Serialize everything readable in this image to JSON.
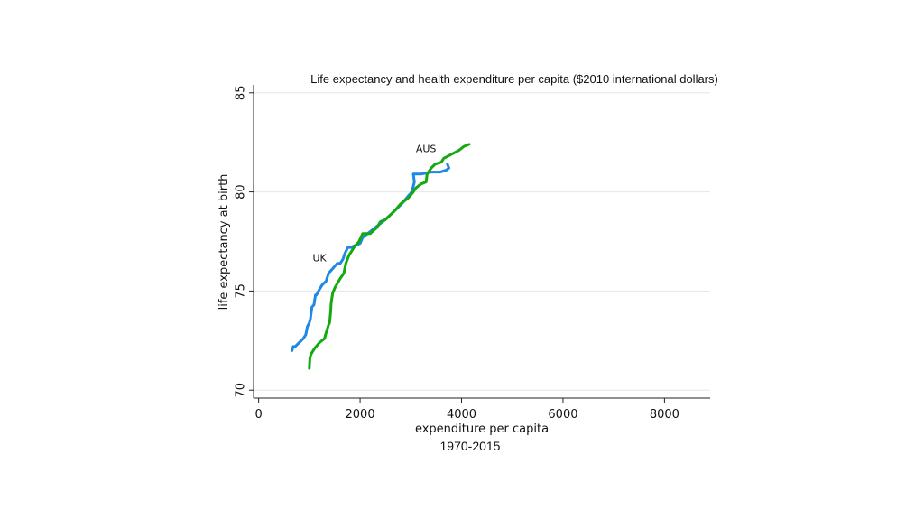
{
  "chart_data": {
    "type": "line",
    "title": "Life expectancy and health expenditure per capita ($2010 international dollars)",
    "xlabel": "expenditure per capita",
    "ylabel": "life expectancy at birth",
    "caption": "1970-2015",
    "xlim": [
      -100,
      8900
    ],
    "ylim": [
      69.6,
      85.4
    ],
    "xticks": [
      0,
      2000,
      4000,
      6000,
      8000
    ],
    "yticks": [
      70,
      75,
      80,
      85
    ],
    "grid": true,
    "legend": "none",
    "series": [
      {
        "name": "UK",
        "color": "#1f88e5",
        "label_at": [
          1200,
          76.5
        ],
        "points": [
          [
            660,
            72.0
          ],
          [
            680,
            72.2
          ],
          [
            720,
            72.2
          ],
          [
            800,
            72.4
          ],
          [
            880,
            72.6
          ],
          [
            930,
            72.8
          ],
          [
            960,
            73.2
          ],
          [
            1000,
            73.4
          ],
          [
            1020,
            73.6
          ],
          [
            1050,
            74.2
          ],
          [
            1090,
            74.3
          ],
          [
            1120,
            74.8
          ],
          [
            1140,
            74.8
          ],
          [
            1180,
            75.0
          ],
          [
            1250,
            75.3
          ],
          [
            1330,
            75.5
          ],
          [
            1380,
            75.9
          ],
          [
            1450,
            76.1
          ],
          [
            1550,
            76.4
          ],
          [
            1610,
            76.4
          ],
          [
            1660,
            76.6
          ],
          [
            1700,
            76.9
          ],
          [
            1760,
            77.2
          ],
          [
            1820,
            77.2
          ],
          [
            1900,
            77.3
          ],
          [
            2000,
            77.4
          ],
          [
            2050,
            77.7
          ],
          [
            2150,
            77.9
          ],
          [
            2300,
            78.2
          ],
          [
            2450,
            78.5
          ],
          [
            2620,
            78.9
          ],
          [
            2820,
            79.4
          ],
          [
            2950,
            79.8
          ],
          [
            3020,
            80.0
          ],
          [
            3050,
            80.3
          ],
          [
            3070,
            80.5
          ],
          [
            3050,
            80.9
          ],
          [
            3200,
            80.9
          ],
          [
            3400,
            81.0
          ],
          [
            3580,
            81.0
          ],
          [
            3700,
            81.1
          ],
          [
            3750,
            81.2
          ],
          [
            3720,
            81.4
          ]
        ]
      },
      {
        "name": "AUS",
        "color": "#14a90e",
        "label_at": [
          3300,
          82.0
        ],
        "points": [
          [
            1000,
            71.1
          ],
          [
            1010,
            71.6
          ],
          [
            1030,
            71.8
          ],
          [
            1100,
            72.1
          ],
          [
            1200,
            72.4
          ],
          [
            1300,
            72.6
          ],
          [
            1320,
            72.8
          ],
          [
            1380,
            73.3
          ],
          [
            1400,
            73.4
          ],
          [
            1420,
            74.0
          ],
          [
            1430,
            74.4
          ],
          [
            1460,
            74.9
          ],
          [
            1510,
            75.2
          ],
          [
            1600,
            75.6
          ],
          [
            1680,
            75.9
          ],
          [
            1720,
            76.4
          ],
          [
            1780,
            76.8
          ],
          [
            1880,
            77.2
          ],
          [
            1980,
            77.5
          ],
          [
            2050,
            77.9
          ],
          [
            2200,
            77.9
          ],
          [
            2330,
            78.2
          ],
          [
            2400,
            78.5
          ],
          [
            2500,
            78.6
          ],
          [
            2620,
            78.9
          ],
          [
            2700,
            79.1
          ],
          [
            2800,
            79.4
          ],
          [
            2950,
            79.7
          ],
          [
            3050,
            80.0
          ],
          [
            3100,
            80.2
          ],
          [
            3200,
            80.4
          ],
          [
            3300,
            80.5
          ],
          [
            3320,
            80.9
          ],
          [
            3400,
            81.2
          ],
          [
            3480,
            81.4
          ],
          [
            3600,
            81.5
          ],
          [
            3650,
            81.7
          ],
          [
            3800,
            81.9
          ],
          [
            3950,
            82.1
          ],
          [
            4050,
            82.3
          ],
          [
            4150,
            82.4
          ]
        ]
      }
    ]
  }
}
